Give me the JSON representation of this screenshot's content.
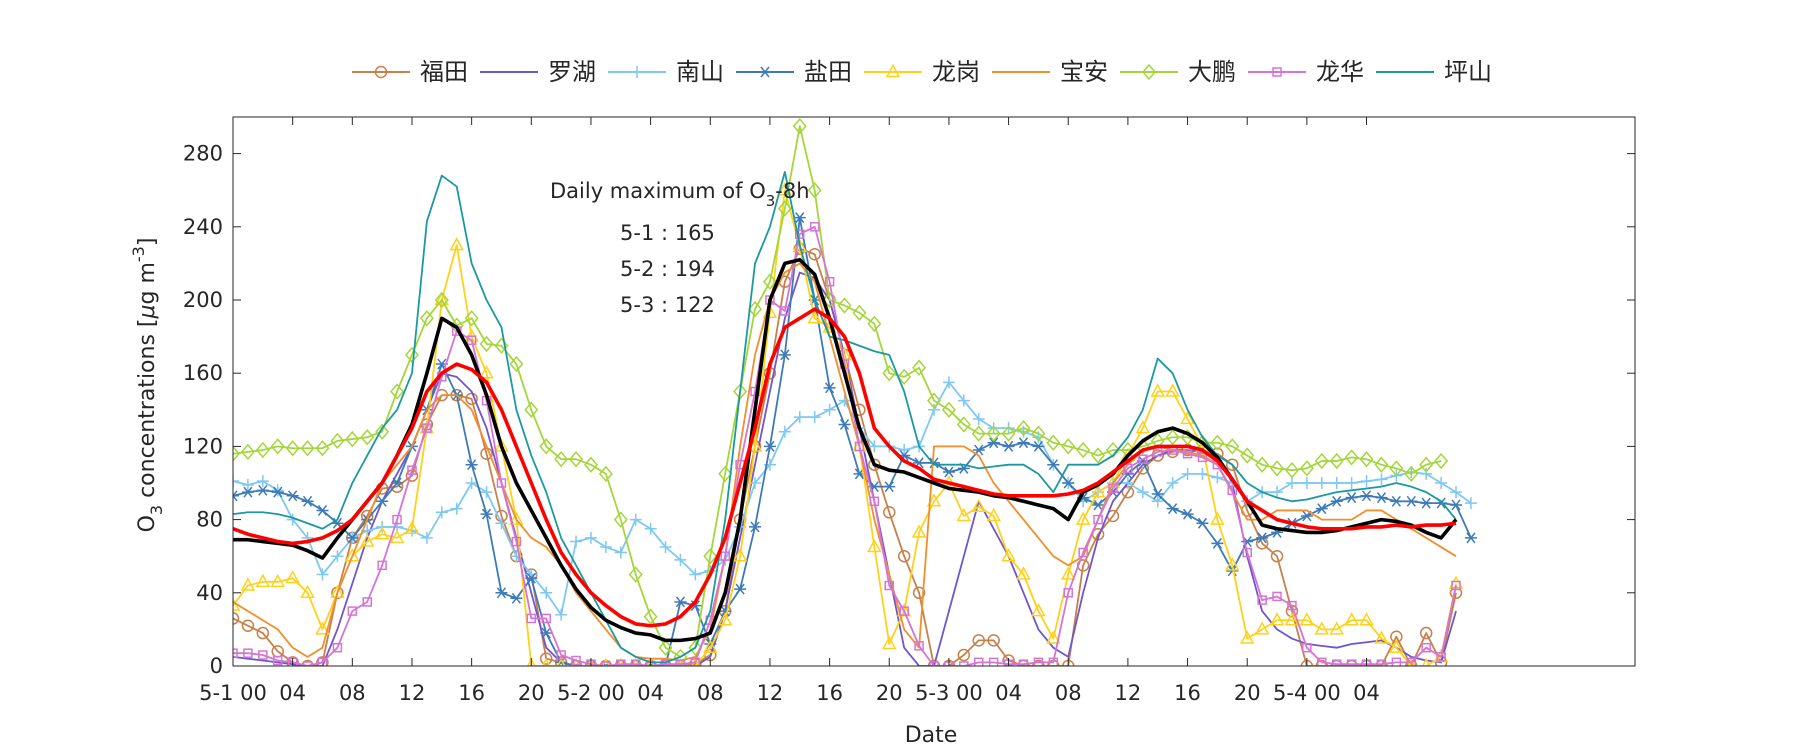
{
  "chart_data": {
    "type": "line",
    "xlabel": "Date",
    "ylabel_main": "O",
    "ylabel_sub": "3",
    "ylabel_rest": " concentrations [",
    "ylabel_mu": "μ",
    "ylabel_unit": "g m",
    "ylabel_sup": "-3",
    "ylabel_close": "]",
    "ylim": [
      0,
      300
    ],
    "xlim": [
      0,
      94
    ],
    "y_ticks": [
      0,
      40,
      80,
      120,
      160,
      200,
      240,
      280
    ],
    "x_ticks": [
      {
        "x": 0,
        "label": "5-1 00"
      },
      {
        "x": 4,
        "label": "04"
      },
      {
        "x": 8,
        "label": "08"
      },
      {
        "x": 12,
        "label": "12"
      },
      {
        "x": 16,
        "label": "16"
      },
      {
        "x": 20,
        "label": "20"
      },
      {
        "x": 24,
        "label": "5-2 00"
      },
      {
        "x": 28,
        "label": "04"
      },
      {
        "x": 32,
        "label": "08"
      },
      {
        "x": 36,
        "label": "12"
      },
      {
        "x": 40,
        "label": "16"
      },
      {
        "x": 44,
        "label": "20"
      },
      {
        "x": 48,
        "label": "5-3 00"
      },
      {
        "x": 52,
        "label": "04"
      },
      {
        "x": 56,
        "label": "08"
      },
      {
        "x": 60,
        "label": "12"
      },
      {
        "x": 64,
        "label": "16"
      },
      {
        "x": 68,
        "label": "20"
      },
      {
        "x": 72,
        "label": "5-4 00"
      },
      {
        "x": 76,
        "label": "04"
      }
    ],
    "grid": false,
    "legend_position": "top",
    "annotation": {
      "title_main": "Daily maximum of O",
      "title_sub": "3",
      "title_rest": "-8h",
      "lines": [
        "5-1 : 165",
        "5-2 : 194",
        "5-3 : 122"
      ]
    },
    "series": [
      {
        "name": "福田",
        "color": "#C8804A",
        "marker": "circle",
        "values": [
          26,
          22,
          18,
          8,
          2,
          0,
          2,
          40,
          70,
          82,
          97,
          98,
          104,
          132,
          148,
          148,
          146,
          116,
          82,
          60,
          50,
          4,
          2,
          0,
          0,
          0,
          0,
          0,
          0,
          0,
          0,
          1,
          6,
          30,
          80,
          120,
          160,
          210,
          228,
          225,
          200,
          170,
          140,
          110,
          84,
          60,
          40,
          0,
          0,
          6,
          14,
          14,
          3,
          0,
          0,
          0,
          0,
          55,
          72,
          82,
          95,
          108,
          115,
          117,
          118,
          118,
          116,
          110,
          85,
          67,
          60,
          30,
          0,
          0,
          0,
          0,
          0,
          0,
          16,
          0,
          18,
          2,
          40
        ]
      },
      {
        "name": "罗湖",
        "color": "#6F55D0",
        "marker": "none",
        "values": [
          5,
          4,
          3,
          2,
          1,
          0,
          0,
          20,
          45,
          70,
          90,
          105,
          120,
          140,
          160,
          158,
          150,
          130,
          100,
          70,
          40,
          10,
          2,
          0,
          0,
          0,
          0,
          0,
          0,
          0,
          0,
          0,
          5,
          30,
          70,
          110,
          150,
          190,
          215,
          212,
          200,
          170,
          130,
          90,
          50,
          10,
          0,
          0,
          30,
          60,
          90,
          75,
          60,
          40,
          20,
          10,
          5,
          40,
          70,
          90,
          100,
          110,
          115,
          118,
          118,
          117,
          115,
          100,
          60,
          30,
          20,
          15,
          12,
          11,
          10,
          12,
          13,
          14,
          10,
          5,
          3,
          2,
          30
        ]
      },
      {
        "name": "南山",
        "color": "#7EC8F2",
        "marker": "plus",
        "values": [
          101,
          99,
          101,
          96,
          80,
          70,
          50,
          60,
          70,
          74,
          76,
          76,
          74,
          70,
          84,
          86,
          100,
          95,
          78,
          60,
          50,
          40,
          28,
          68,
          70,
          65,
          62,
          80,
          75,
          65,
          58,
          50,
          52,
          58,
          76,
          100,
          110,
          128,
          136,
          136,
          140,
          145,
          130,
          120,
          120,
          118,
          120,
          140,
          155,
          145,
          135,
          130,
          130,
          128,
          125,
          110,
          100,
          90,
          95,
          100,
          100,
          95,
          90,
          100,
          105,
          105,
          103,
          100,
          90,
          95,
          95,
          100,
          100,
          100,
          100,
          100,
          101,
          102,
          104,
          106,
          105,
          100,
          95,
          89
        ]
      },
      {
        "name": "盐田",
        "color": "#3D7AB8",
        "marker": "asterisk",
        "values": [
          93,
          95,
          96,
          95,
          93,
          90,
          85,
          78,
          70,
          80,
          90,
          100,
          120,
          140,
          165,
          148,
          110,
          83,
          40,
          37,
          48,
          18,
          2,
          0,
          0,
          0,
          0,
          0,
          0,
          0,
          35,
          33,
          12,
          30,
          42,
          76,
          120,
          170,
          245,
          200,
          152,
          132,
          105,
          98,
          98,
          115,
          111,
          111,
          106,
          108,
          118,
          122,
          120,
          122,
          120,
          110,
          100,
          92,
          88,
          95,
          105,
          112,
          94,
          86,
          83,
          78,
          67,
          52,
          68,
          70,
          73,
          78,
          82,
          86,
          90,
          92,
          93,
          92,
          90,
          90,
          89,
          89,
          88,
          70
        ]
      },
      {
        "name": "龙岗",
        "color": "#FFD11A",
        "marker": "triangle",
        "values": [
          33,
          44,
          46,
          46,
          48,
          40,
          20,
          40,
          60,
          68,
          72,
          70,
          75,
          130,
          200,
          230,
          180,
          160,
          120,
          80,
          0,
          0,
          0,
          0,
          0,
          0,
          0,
          0,
          0,
          0,
          0,
          0,
          10,
          25,
          60,
          120,
          193,
          260,
          229,
          190,
          185,
          170,
          120,
          65,
          12,
          30,
          73,
          90,
          100,
          82,
          87,
          82,
          60,
          50,
          30,
          15,
          50,
          80,
          95,
          100,
          115,
          130,
          150,
          150,
          135,
          120,
          80,
          55,
          15,
          20,
          25,
          25,
          25,
          20,
          20,
          25,
          25,
          15,
          10,
          0,
          0,
          5,
          45
        ]
      },
      {
        "name": "宝安",
        "color": "#F28E2B",
        "marker": "none",
        "values": [
          35,
          30,
          25,
          20,
          10,
          5,
          10,
          40,
          60,
          80,
          100,
          110,
          120,
          140,
          148,
          148,
          140,
          120,
          100,
          80,
          70,
          65,
          55,
          40,
          30,
          20,
          10,
          5,
          4,
          4,
          3,
          5,
          20,
          60,
          120,
          170,
          200,
          215,
          220,
          210,
          180,
          150,
          120,
          80,
          50,
          20,
          10,
          120,
          120,
          120,
          115,
          100,
          90,
          80,
          70,
          60,
          55,
          60,
          80,
          100,
          110,
          118,
          120,
          118,
          117,
          115,
          110,
          95,
          80,
          80,
          85,
          85,
          85,
          80,
          80,
          80,
          85,
          85,
          80,
          75,
          70,
          65,
          60
        ]
      },
      {
        "name": "大鹏",
        "color": "#A4D63A",
        "marker": "diamond",
        "values": [
          116,
          117,
          118,
          120,
          119,
          119,
          119,
          123,
          124,
          125,
          128,
          150,
          170,
          190,
          200,
          186,
          190,
          176,
          175,
          165,
          140,
          120,
          113,
          113,
          110,
          105,
          80,
          50,
          27,
          10,
          5,
          10,
          60,
          105,
          150,
          195,
          210,
          250,
          295,
          260,
          200,
          197,
          193,
          187,
          160,
          158,
          163,
          145,
          140,
          132,
          127,
          127,
          127,
          130,
          127,
          122,
          120,
          118,
          115,
          118,
          118,
          120,
          123,
          125,
          125,
          122,
          122,
          120,
          115,
          110,
          108,
          107,
          108,
          112,
          112,
          114,
          113,
          110,
          108,
          105,
          110,
          112
        ]
      },
      {
        "name": "龙华",
        "color": "#D673D6",
        "marker": "square",
        "values": [
          7,
          7,
          6,
          3,
          2,
          0,
          2,
          10,
          30,
          35,
          55,
          80,
          107,
          130,
          158,
          183,
          178,
          145,
          100,
          68,
          26,
          26,
          6,
          3,
          1,
          0,
          1,
          1,
          0,
          1,
          1,
          2,
          25,
          60,
          110,
          150,
          200,
          194,
          236,
          240,
          210,
          165,
          120,
          90,
          44,
          30,
          11,
          0,
          0,
          0,
          2,
          2,
          1,
          1,
          2,
          2,
          40,
          62,
          80,
          97,
          108,
          113,
          117,
          118,
          116,
          114,
          110,
          96,
          62,
          36,
          38,
          33,
          10,
          2,
          1,
          1,
          1,
          1,
          2,
          2,
          10,
          5,
          44
        ]
      },
      {
        "name": "坪山",
        "color": "#1A9AA0",
        "marker": "none",
        "values": [
          83,
          84,
          84,
          83,
          81,
          78,
          75,
          80,
          100,
          115,
          130,
          140,
          160,
          243,
          268,
          262,
          220,
          200,
          185,
          140,
          115,
          95,
          70,
          55,
          40,
          25,
          10,
          5,
          2,
          2,
          5,
          10,
          30,
          80,
          150,
          220,
          240,
          270,
          230,
          200,
          180,
          178,
          175,
          172,
          170,
          150,
          120,
          110,
          110,
          110,
          108,
          109,
          110,
          110,
          105,
          95,
          110,
          110,
          110,
          115,
          125,
          140,
          168,
          160,
          140,
          125,
          115,
          110,
          100,
          95,
          92,
          90,
          91,
          93,
          95,
          96,
          97,
          98,
          100,
          98,
          95,
          90,
          80
        ]
      },
      {
        "name": "",
        "color": "#000000",
        "marker": "none",
        "values": [
          69,
          69,
          68,
          67,
          66,
          63,
          59,
          70,
          80,
          90,
          100,
          115,
          132,
          160,
          190,
          185,
          170,
          148,
          120,
          100,
          85,
          70,
          55,
          42,
          32,
          25,
          21,
          18,
          17,
          14,
          14,
          15,
          18,
          40,
          80,
          140,
          200,
          220,
          222,
          214,
          190,
          160,
          130,
          110,
          107,
          106,
          103,
          100,
          97,
          96,
          95,
          93,
          92,
          90,
          88,
          86,
          80,
          95,
          99,
          105,
          115,
          123,
          128,
          130,
          127,
          122,
          114,
          102,
          90,
          77,
          75,
          74,
          73,
          73,
          74,
          76,
          78,
          80,
          79,
          77,
          73,
          70,
          80
        ]
      },
      {
        "name": "",
        "color": "#FF0000",
        "marker": "none",
        "values": [
          75,
          72,
          70,
          68,
          67,
          68,
          70,
          74,
          80,
          90,
          100,
          115,
          130,
          150,
          160,
          165,
          162,
          155,
          140,
          120,
          100,
          80,
          62,
          50,
          40,
          33,
          27,
          23,
          22,
          23,
          27,
          35,
          50,
          70,
          100,
          130,
          165,
          185,
          190,
          195,
          190,
          180,
          160,
          130,
          120,
          112,
          108,
          102,
          100,
          98,
          96,
          94,
          93,
          93,
          93,
          93,
          94,
          96,
          100,
          106,
          112,
          118,
          120,
          120,
          120,
          118,
          112,
          102,
          90,
          85,
          80,
          78,
          76,
          75,
          75,
          75,
          76,
          76,
          77,
          76,
          77,
          77,
          78
        ]
      }
    ]
  }
}
